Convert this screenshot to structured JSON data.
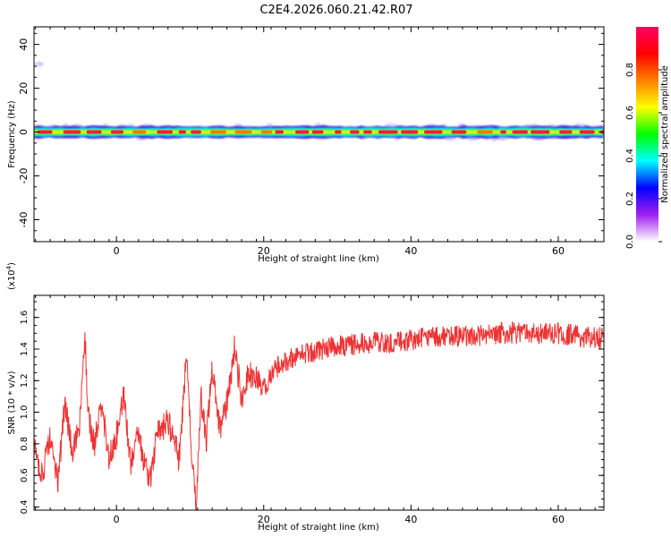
{
  "title": "C2E4.2026.060.21.42.R07",
  "chart_data": [
    {
      "type": "heatmap",
      "name": "spectrogram",
      "xlabel": "Height of straight line (km)",
      "ylabel": "Frequency (Hz)",
      "xlim": [
        -11.2,
        66.2
      ],
      "ylim": [
        -50,
        48
      ],
      "xticks": [
        0,
        20,
        40,
        60
      ],
      "yticks": [
        -40,
        -20,
        0,
        20,
        40
      ],
      "band_center_hz": 0,
      "band_halfwidth_hz": 2.5,
      "stray_spot": {
        "x": -10.5,
        "y": 31
      },
      "colorbar": {
        "label": "Normalized spectral amplitude",
        "range": [
          0,
          1
        ],
        "ticks": [
          "0.0",
          "0.2",
          "0.4",
          "0.6",
          "0.8"
        ],
        "colors": [
          "#ffffff",
          "#a020f0",
          "#0000ff",
          "#00ffff",
          "#00ff00",
          "#ffff00",
          "#ff8000",
          "#ff0000",
          "#ff0066"
        ]
      }
    },
    {
      "type": "line",
      "name": "snr",
      "xlabel": "Height of straight line (km)",
      "ylabel": "SNR (10 * v/v)",
      "y_multiplier": "(x10",
      "y_multiplier_exp": "4",
      "y_multiplier_close": ")",
      "xlim": [
        -11.2,
        66.2
      ],
      "ylim": [
        0.38,
        1.74
      ],
      "xticks": [
        0,
        20,
        40,
        60
      ],
      "yticks": [
        "0.4",
        "0.6",
        "0.8",
        "1.0",
        "1.2",
        "1.4",
        "1.6"
      ],
      "color": "#ee3333",
      "x": [
        -11,
        -10,
        -9,
        -8,
        -7,
        -6,
        -5,
        -4.3,
        -3.8,
        -3,
        -2,
        -1,
        0,
        1,
        2,
        2.8,
        3.5,
        4.5,
        5.5,
        7,
        8.5,
        9.5,
        10.3,
        10.8,
        11.5,
        12.2,
        13,
        14,
        15,
        16,
        17,
        18,
        19,
        20,
        22,
        24,
        26,
        28,
        30,
        33,
        36,
        40,
        44,
        48,
        52,
        56,
        60,
        63,
        66
      ],
      "y": [
        0.75,
        0.6,
        0.85,
        0.55,
        1.05,
        0.75,
        0.9,
        1.5,
        0.95,
        0.8,
        1.05,
        0.7,
        0.85,
        1.1,
        0.65,
        0.9,
        0.75,
        0.55,
        0.85,
        0.95,
        0.7,
        1.35,
        0.65,
        0.42,
        1.1,
        0.8,
        1.3,
        0.9,
        1.05,
        1.4,
        1.1,
        1.25,
        1.2,
        1.15,
        1.3,
        1.35,
        1.38,
        1.4,
        1.42,
        1.43,
        1.44,
        1.46,
        1.48,
        1.48,
        1.5,
        1.5,
        1.5,
        1.48,
        1.47
      ]
    }
  ]
}
